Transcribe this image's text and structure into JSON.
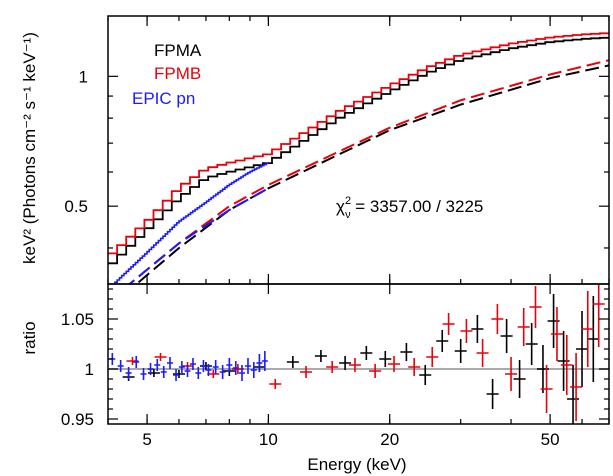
{
  "chart_data": [
    {
      "panel": "spectrum",
      "type": "step",
      "xscale": "log",
      "yscale": "log",
      "xlim": [
        4,
        70
      ],
      "ylim": [
        0.33,
        1.38
      ],
      "ylabel": "keV² (Photons cm⁻² s⁻¹ keV⁻¹)",
      "yticks": [
        0.5,
        1
      ],
      "ytick_labels": [
        "0.5",
        "1"
      ],
      "annotation": "χ²ν = 3357.00 / 3225",
      "annotation_parts": {
        "symbol": "χ",
        "sup": "2",
        "sub": "ν",
        "value": " = 3357.00 / 3225"
      },
      "legend": {
        "placement": "top-left",
        "entries": [
          "FPMA",
          "FPMB",
          "EPIC pn"
        ]
      },
      "series": [
        {
          "name": "FPMA",
          "color": "#000000",
          "x": [
            4,
            5,
            6,
            7,
            8,
            10,
            12,
            15,
            20,
            25,
            30,
            40,
            50,
            60,
            70
          ],
          "y": [
            0.36,
            0.44,
            0.52,
            0.58,
            0.6,
            0.63,
            0.7,
            0.8,
            0.92,
            1.02,
            1.09,
            1.16,
            1.2,
            1.22,
            1.23
          ],
          "model_x": [
            4,
            6,
            8,
            10,
            15,
            20,
            30,
            50,
            70
          ],
          "model_y": [
            0.29,
            0.4,
            0.49,
            0.55,
            0.66,
            0.75,
            0.86,
            0.99,
            1.06
          ]
        },
        {
          "name": "FPMB",
          "color": "#e8000b",
          "x": [
            4,
            5,
            6,
            7,
            8,
            10,
            12,
            15,
            20,
            25,
            30,
            40,
            50,
            60,
            70
          ],
          "y": [
            0.38,
            0.46,
            0.55,
            0.61,
            0.63,
            0.66,
            0.73,
            0.83,
            0.95,
            1.05,
            1.12,
            1.19,
            1.23,
            1.25,
            1.26
          ],
          "model_x": [
            4,
            6,
            8,
            10,
            15,
            20,
            30,
            50,
            70
          ],
          "model_y": [
            0.3,
            0.41,
            0.5,
            0.56,
            0.67,
            0.76,
            0.88,
            1.01,
            1.09
          ]
        },
        {
          "name": "EPIC pn",
          "color": "#1a1aff",
          "x": [
            4,
            5,
            6,
            7,
            8,
            9,
            10
          ],
          "y": [
            0.32,
            0.39,
            0.46,
            0.51,
            0.56,
            0.6,
            0.63
          ],
          "model_x": [
            4,
            6,
            8,
            10
          ],
          "model_y": [
            0.3,
            0.41,
            0.49,
            0.55
          ]
        }
      ]
    },
    {
      "panel": "ratio",
      "type": "scatter",
      "xscale": "log",
      "xlim": [
        4,
        70
      ],
      "ylim": [
        0.945,
        1.085
      ],
      "xlabel": "Energy (keV)",
      "ylabel": "ratio",
      "xticks": [
        5,
        10,
        20,
        50
      ],
      "xtick_labels": [
        "5",
        "10",
        "20",
        "50"
      ],
      "yticks": [
        0.95,
        1,
        1.05
      ],
      "ytick_labels": [
        "0.95",
        "1",
        "1.05"
      ],
      "reference_line": {
        "y": 1,
        "color": "#aaaaaa"
      },
      "series": [
        {
          "name": "FPMA",
          "color": "#000000",
          "x": [
            4.5,
            5.2,
            6.0,
            7.0,
            8.0,
            9.5,
            11.5,
            13.5,
            15.5,
            17.5,
            19.5,
            22,
            24.5,
            27,
            30,
            33,
            36,
            39,
            42,
            45,
            48,
            51,
            54,
            57,
            60,
            64
          ],
          "y": [
            0.992,
            0.996,
            0.995,
            1.003,
            0.998,
            1.002,
            1.007,
            1.013,
            1.006,
            1.016,
            1.01,
            1.017,
            0.994,
            1.028,
            1.018,
            1.04,
            0.975,
            1.033,
            0.99,
            1.025,
            1.0,
            1.048,
            1.008,
            0.97,
            1.02,
            1.03
          ],
          "err": [
            0.004,
            0.004,
            0.004,
            0.004,
            0.005,
            0.005,
            0.006,
            0.006,
            0.007,
            0.007,
            0.008,
            0.009,
            0.01,
            0.011,
            0.012,
            0.014,
            0.015,
            0.017,
            0.019,
            0.021,
            0.024,
            0.027,
            0.03,
            0.034,
            0.038,
            0.043
          ]
        },
        {
          "name": "FPMB",
          "color": "#e8000b",
          "x": [
            4.6,
            5.4,
            6.3,
            7.3,
            8.4,
            10.4,
            12.4,
            14.4,
            16.4,
            18.4,
            20.5,
            23,
            25.5,
            28,
            31,
            34,
            37,
            40,
            43,
            46,
            49,
            52,
            55,
            58,
            62,
            66
          ],
          "y": [
            1.008,
            1.012,
            1.003,
            0.995,
            1.0,
            0.985,
            0.997,
            1.002,
            1.004,
            0.998,
            1.005,
            1.002,
            1.012,
            1.045,
            1.038,
            1.016,
            1.05,
            0.995,
            1.042,
            1.062,
            0.98,
            1.035,
            1.004,
            0.982,
            1.04,
            1.065
          ],
          "err": [
            0.004,
            0.004,
            0.004,
            0.004,
            0.005,
            0.005,
            0.006,
            0.006,
            0.007,
            0.007,
            0.008,
            0.009,
            0.01,
            0.011,
            0.012,
            0.014,
            0.015,
            0.017,
            0.019,
            0.021,
            0.024,
            0.027,
            0.03,
            0.034,
            0.038,
            0.043
          ]
        },
        {
          "name": "EPIC pn",
          "color": "#1a1aff",
          "x": [
            4.1,
            4.3,
            4.5,
            4.7,
            4.9,
            5.1,
            5.3,
            5.5,
            5.7,
            5.9,
            6.1,
            6.3,
            6.5,
            6.7,
            6.9,
            7.1,
            7.4,
            7.7,
            8.0,
            8.3,
            8.6,
            8.9,
            9.2,
            9.5,
            9.8
          ],
          "y": [
            1.01,
            1.003,
            0.996,
            1.007,
            0.995,
            1.0,
            1.004,
            0.997,
            1.006,
            0.994,
            1.002,
            0.998,
            1.005,
            0.996,
            1.003,
            0.999,
            1.002,
            0.997,
            1.004,
            1.001,
            0.996,
            1.003,
            0.999,
            1.006,
            1.008
          ],
          "err": [
            0.006,
            0.006,
            0.006,
            0.006,
            0.006,
            0.006,
            0.006,
            0.006,
            0.006,
            0.006,
            0.006,
            0.006,
            0.006,
            0.006,
            0.006,
            0.006,
            0.007,
            0.007,
            0.007,
            0.007,
            0.008,
            0.008,
            0.008,
            0.009,
            0.01
          ]
        }
      ]
    }
  ]
}
